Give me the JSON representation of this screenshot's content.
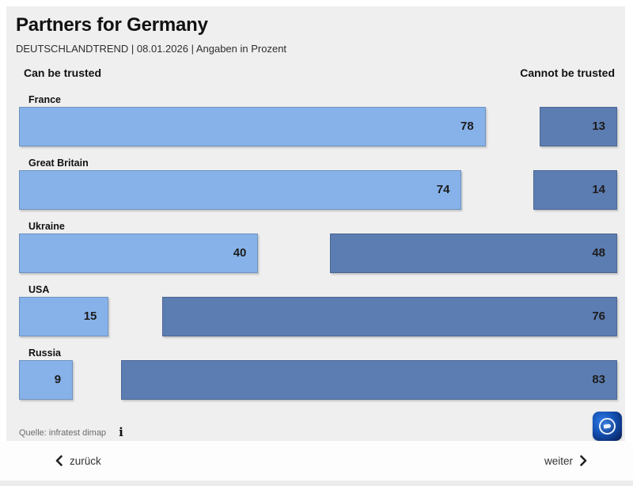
{
  "header": {
    "title": "Partners for Germany",
    "subtitle": "DEUTSCHLANDTREND | 08.01.2026 | Angaben in Prozent"
  },
  "columns": {
    "left_label": "Can be trusted",
    "right_label": "Cannot be trusted"
  },
  "chart_data": {
    "type": "bar",
    "orientation": "horizontal",
    "unit": "percent",
    "axis_range": [
      0,
      100
    ],
    "categories": [
      "France",
      "Great Britain",
      "Ukraine",
      "USA",
      "Russia"
    ],
    "series": [
      {
        "name": "Can be trusted",
        "color": "#87b2e9",
        "values": [
          78,
          74,
          40,
          15,
          9
        ]
      },
      {
        "name": "Cannot be trusted",
        "color": "#5c7db2",
        "values": [
          13,
          14,
          48,
          76,
          83
        ]
      }
    ],
    "value_labels_shown": true,
    "grid": false,
    "legend_position": "top-as-column-headers"
  },
  "footer": {
    "source": "Quelle: infratest dimap",
    "info_icon": "i"
  },
  "nav": {
    "back_label": "zurück",
    "next_label": "weiter"
  },
  "colors": {
    "trusted_bar": "#87b2e9",
    "not_trusted_bar": "#5c7db2",
    "panel_bg": "#efefef",
    "page_bg": "#ffffff",
    "logo_blue": "#1450b4"
  },
  "logo": {
    "name": "tagesschau-logo"
  }
}
